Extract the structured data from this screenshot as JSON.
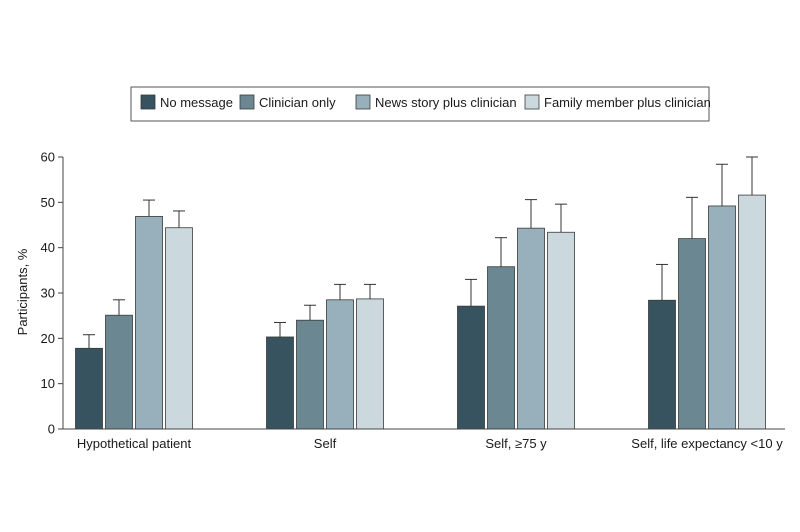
{
  "chart_data": {
    "type": "bar",
    "title": "",
    "xlabel": "",
    "ylabel": "Participants, %",
    "ylim": [
      0,
      60
    ],
    "yticks": [
      "0",
      "10",
      "20",
      "30",
      "40",
      "50",
      "60"
    ],
    "grid": false,
    "legend_position": "top-center",
    "categories": [
      "Hypothetical patient",
      "Self",
      "Self, ≥75 y",
      "Self, life expectancy <10 y"
    ],
    "series": [
      {
        "name": "No message",
        "color": "#36535f",
        "values": [
          17.8,
          20.3,
          27.1,
          28.4
        ],
        "ci_low": [
          15.0,
          17.2,
          21.2,
          20.8
        ],
        "ci_high": [
          20.8,
          23.5,
          33.0,
          36.3
        ]
      },
      {
        "name": "Clinician only",
        "color": "#6b8791",
        "values": [
          25.1,
          24.0,
          35.8,
          42.0
        ],
        "ci_low": [
          22.0,
          21.0,
          29.8,
          33.0
        ],
        "ci_high": [
          28.5,
          27.3,
          42.2,
          51.1
        ]
      },
      {
        "name": "News story plus clinician",
        "color": "#97b0bc",
        "values": [
          46.9,
          28.5,
          44.3,
          49.2
        ],
        "ci_low": [
          43.3,
          25.3,
          38.1,
          40.3
        ],
        "ci_high": [
          50.5,
          31.9,
          50.6,
          58.4
        ]
      },
      {
        "name": "Family member plus clinician",
        "color": "#cbd9df",
        "values": [
          44.4,
          28.7,
          43.4,
          51.6
        ],
        "ci_low": [
          40.7,
          25.5,
          37.4,
          43.4
        ],
        "ci_high": [
          48.1,
          31.9,
          49.6,
          60.0
        ]
      }
    ]
  }
}
